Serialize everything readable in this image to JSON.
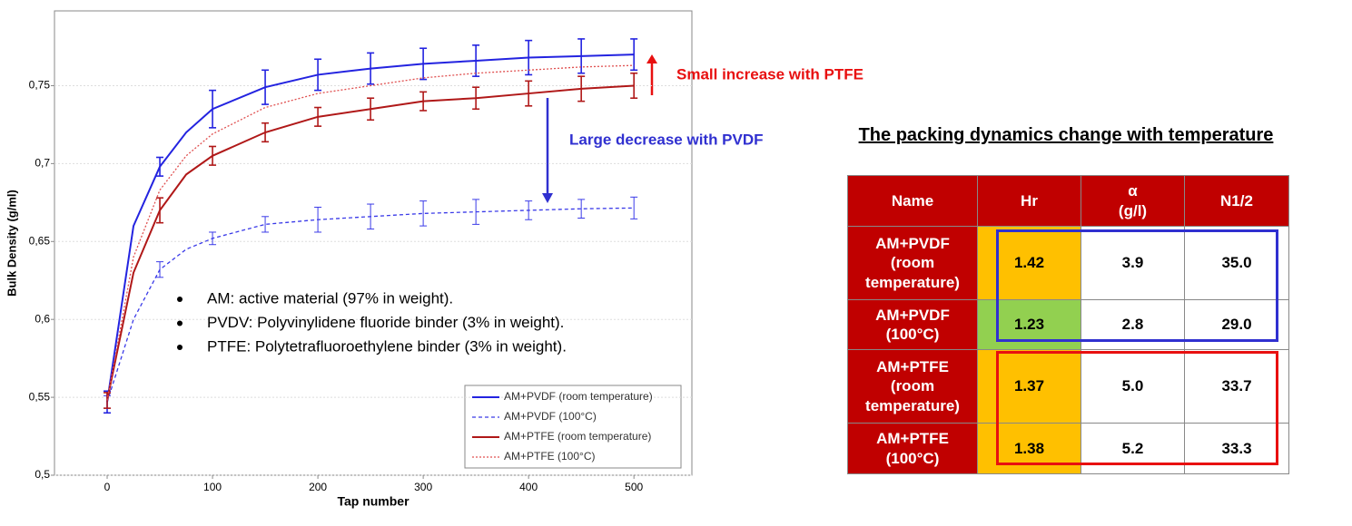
{
  "chart_data": {
    "type": "line",
    "xlabel": "Tap number",
    "ylabel": "Bulk Density (g/ml)",
    "x": [
      0,
      25,
      50,
      75,
      100,
      150,
      200,
      250,
      300,
      350,
      400,
      450,
      500
    ],
    "series": [
      {
        "name": "AM+PVDF (room temperature)",
        "color": "#2323e0",
        "line_style": "solid",
        "values": [
          0.547,
          0.66,
          0.698,
          0.72,
          0.735,
          0.749,
          0.757,
          0.761,
          0.764,
          0.766,
          0.768,
          0.769,
          0.77
        ],
        "errors": [
          0.007,
          null,
          0.006,
          null,
          0.012,
          0.011,
          0.01,
          0.01,
          0.01,
          0.01,
          0.011,
          0.011,
          0.01
        ]
      },
      {
        "name": "AM+PVDF (100°C)",
        "color": "#3a3ae8",
        "line_style": "dashed",
        "values": [
          0.547,
          0.6,
          0.632,
          0.645,
          0.652,
          0.661,
          0.664,
          0.666,
          0.668,
          0.669,
          0.67,
          0.671,
          0.6715
        ],
        "errors": [
          0.004,
          null,
          0.005,
          null,
          0.004,
          0.005,
          0.008,
          0.008,
          0.008,
          0.008,
          0.006,
          0.006,
          0.007
        ]
      },
      {
        "name": "AM+PTFE (room temperature)",
        "color": "#b01818",
        "line_style": "solid",
        "values": [
          0.548,
          0.63,
          0.67,
          0.693,
          0.705,
          0.72,
          0.73,
          0.735,
          0.74,
          0.742,
          0.745,
          0.748,
          0.75
        ],
        "errors": [
          0.005,
          null,
          0.008,
          null,
          0.006,
          0.006,
          0.006,
          0.007,
          0.006,
          0.007,
          0.008,
          0.008,
          0.008
        ]
      },
      {
        "name": "AM+PTFE (100°C)",
        "color": "#e05050",
        "line_style": "dotted",
        "values": [
          0.548,
          0.64,
          0.683,
          0.705,
          0.719,
          0.736,
          0.745,
          0.75,
          0.755,
          0.758,
          0.76,
          0.762,
          0.763
        ]
      }
    ],
    "xlim": [
      -50,
      555
    ],
    "xticks": [
      0,
      100,
      200,
      300,
      400,
      500
    ],
    "ylim": [
      0.5,
      0.798
    ],
    "yticks": [
      {
        "value": 0.5,
        "label": "0,5"
      },
      {
        "value": 0.55,
        "label": "0,55"
      },
      {
        "value": 0.6,
        "label": "0,6"
      },
      {
        "value": 0.65,
        "label": "0,65"
      },
      {
        "value": 0.7,
        "label": "0,7"
      },
      {
        "value": 0.75,
        "label": "0,75"
      }
    ],
    "grid": true,
    "legend": "lower right",
    "notes": [
      "AM: active material (97% in weight).",
      "PVDV: Polyvinylidene fluoride binder (3% in weight).",
      "PTFE: Polytetrafluoroethylene binder (3% in weight)."
    ],
    "annotations": [
      {
        "text": "Small increase with PTFE",
        "color": "#e81010"
      },
      {
        "text": "Large decrease with PVDF",
        "color": "#3030d0"
      }
    ]
  },
  "table": {
    "title": "The packing dynamics change with temperature",
    "header": [
      "Name",
      "Hr",
      "α\n(g/l)",
      "N1/2"
    ],
    "rows": [
      [
        "AM+PVDF\n(room\ntemperature)",
        "1.42",
        "3.9",
        "35.0"
      ],
      [
        "AM+PVDF\n(100°C)",
        "1.23",
        "2.8",
        "29.0"
      ],
      [
        "AM+PTFE\n(room\ntemperature)",
        "1.37",
        "5.0",
        "33.7"
      ],
      [
        "AM+PTFE\n(100°C)",
        "1.38",
        "5.2",
        "33.3"
      ]
    ],
    "hr_colors": [
      "#ffc000",
      "#92d050",
      "#ffc000",
      "#ffc000"
    ]
  }
}
